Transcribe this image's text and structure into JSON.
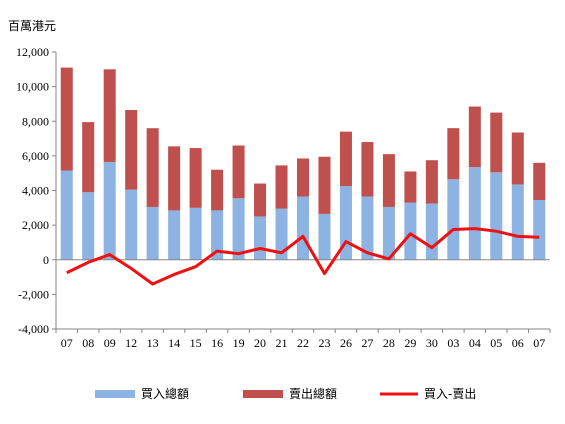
{
  "chart_data": {
    "type": "bar",
    "stacked": true,
    "unit_label": "百萬港元",
    "categories": [
      "07",
      "08",
      "09",
      "12",
      "13",
      "14",
      "15",
      "16",
      "19",
      "20",
      "21",
      "22",
      "23",
      "26",
      "27",
      "28",
      "29",
      "30",
      "03",
      "04",
      "05",
      "06",
      "07"
    ],
    "series": [
      {
        "name": "買入總額",
        "kind": "bar",
        "values": [
          5150,
          3900,
          5650,
          4050,
          3050,
          2850,
          3000,
          2850,
          3550,
          2500,
          2950,
          3650,
          2650,
          4250,
          3650,
          3050,
          3300,
          3250,
          4650,
          5350,
          5050,
          4350,
          3450
        ]
      },
      {
        "name": "賣出總額",
        "kind": "bar",
        "values": [
          5950,
          4050,
          5350,
          4600,
          4550,
          3700,
          3450,
          2350,
          3050,
          1900,
          2500,
          2200,
          3300,
          3150,
          3150,
          3050,
          1800,
          2500,
          2950,
          3500,
          3450,
          3000,
          2150
        ]
      },
      {
        "name": "買入-賣出",
        "kind": "line",
        "values": [
          -750,
          -150,
          300,
          -500,
          -1400,
          -850,
          -400,
          500,
          350,
          650,
          400,
          1350,
          -800,
          1050,
          400,
          50,
          1500,
          700,
          1750,
          1800,
          1650,
          1350,
          1300
        ]
      }
    ],
    "ylim": [
      -4000,
      12000
    ],
    "yticks": [
      -4000,
      -2000,
      0,
      2000,
      4000,
      6000,
      8000,
      10000,
      12000
    ],
    "ytick_labels": [
      "-4,000",
      "-2,000",
      "0",
      "2,000",
      "4,000",
      "6,000",
      "8,000",
      "10,000",
      "12,000"
    ],
    "grid": false,
    "legend_position": "bottom",
    "colors": {
      "buy": "#8db3e2",
      "sell": "#c0504d",
      "net": "#ee1111",
      "axis": "#868686"
    }
  }
}
